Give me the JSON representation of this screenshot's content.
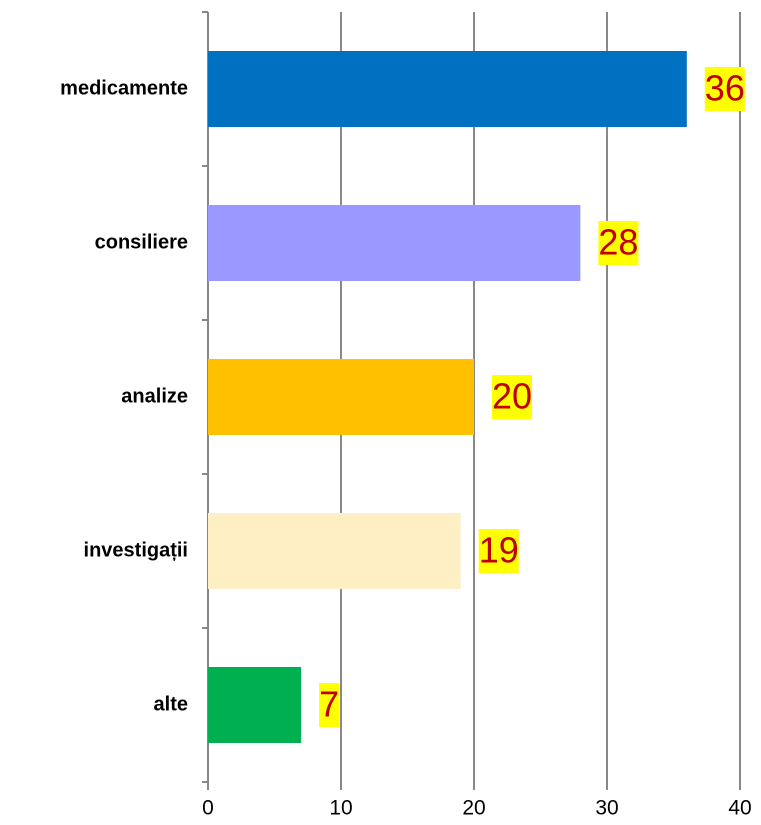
{
  "chart_data": {
    "type": "hbar",
    "categories": [
      "medicamente",
      "consiliere",
      "analize",
      "investigații",
      "alte"
    ],
    "values": [
      36,
      28,
      20,
      19,
      7
    ],
    "colors": [
      "#0070c0",
      "#9999ff",
      "#ffc000",
      "#ffefc4",
      "#00b050"
    ],
    "xlim": [
      0,
      40
    ],
    "xticks": [
      0,
      10,
      20,
      30,
      40
    ],
    "grid": true
  }
}
